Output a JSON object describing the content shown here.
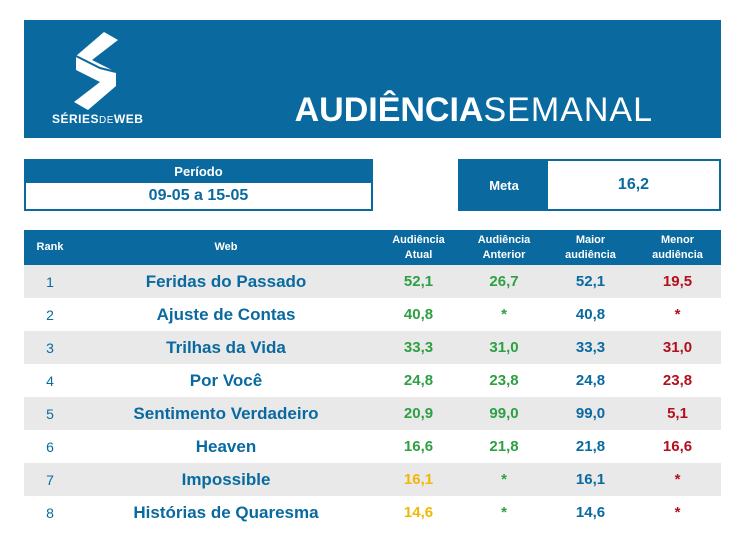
{
  "brand": {
    "logo_prefix": "SÉRIES",
    "logo_mid": "DE",
    "logo_suffix": "WEB",
    "accent": "#0a6aa0"
  },
  "title": {
    "bold": "AUDIÊNCIA",
    "normal": "SEMANAL"
  },
  "periodo": {
    "label": "Período",
    "value": "09-05 a 15-05"
  },
  "meta": {
    "label": "Meta",
    "value": "16,2"
  },
  "table": {
    "headers": {
      "rank": "Rank",
      "web": "Web",
      "atual_1": "Audiência",
      "atual_2": "Atual",
      "anterior_1": "Audiência",
      "anterior_2": "Anterior",
      "maior_1": "Maior",
      "maior_2": "audiência",
      "menor_1": "Menor",
      "menor_2": "audiência"
    },
    "colors": {
      "green": "#2ea043",
      "yellow": "#f2b705",
      "blue": "#0a6aa0",
      "red": "#b40f1e"
    },
    "rows": [
      {
        "rank": "1",
        "web": "Feridas do Passado",
        "atual": "52,1",
        "atual_color": "green",
        "anterior": "26,7",
        "maior": "52,1",
        "menor": "19,5"
      },
      {
        "rank": "2",
        "web": "Ajuste de Contas",
        "atual": "40,8",
        "atual_color": "green",
        "anterior": "*",
        "maior": "40,8",
        "menor": "*"
      },
      {
        "rank": "3",
        "web": "Trilhas da Vida",
        "atual": "33,3",
        "atual_color": "green",
        "anterior": "31,0",
        "maior": "33,3",
        "menor": "31,0"
      },
      {
        "rank": "4",
        "web": "Por Você",
        "atual": "24,8",
        "atual_color": "green",
        "anterior": "23,8",
        "maior": "24,8",
        "menor": "23,8"
      },
      {
        "rank": "5",
        "web": "Sentimento Verdadeiro",
        "atual": "20,9",
        "atual_color": "green",
        "anterior": "99,0",
        "maior": "99,0",
        "menor": "5,1"
      },
      {
        "rank": "6",
        "web": "Heaven",
        "atual": "16,6",
        "atual_color": "green",
        "anterior": "21,8",
        "maior": "21,8",
        "menor": "16,6"
      },
      {
        "rank": "7",
        "web": "Impossible",
        "atual": "16,1",
        "atual_color": "yellow",
        "anterior": "*",
        "maior": "16,1",
        "menor": "*"
      },
      {
        "rank": "8",
        "web": "Histórias de Quaresma",
        "atual": "14,6",
        "atual_color": "yellow",
        "anterior": "*",
        "maior": "14,6",
        "menor": "*"
      }
    ]
  }
}
